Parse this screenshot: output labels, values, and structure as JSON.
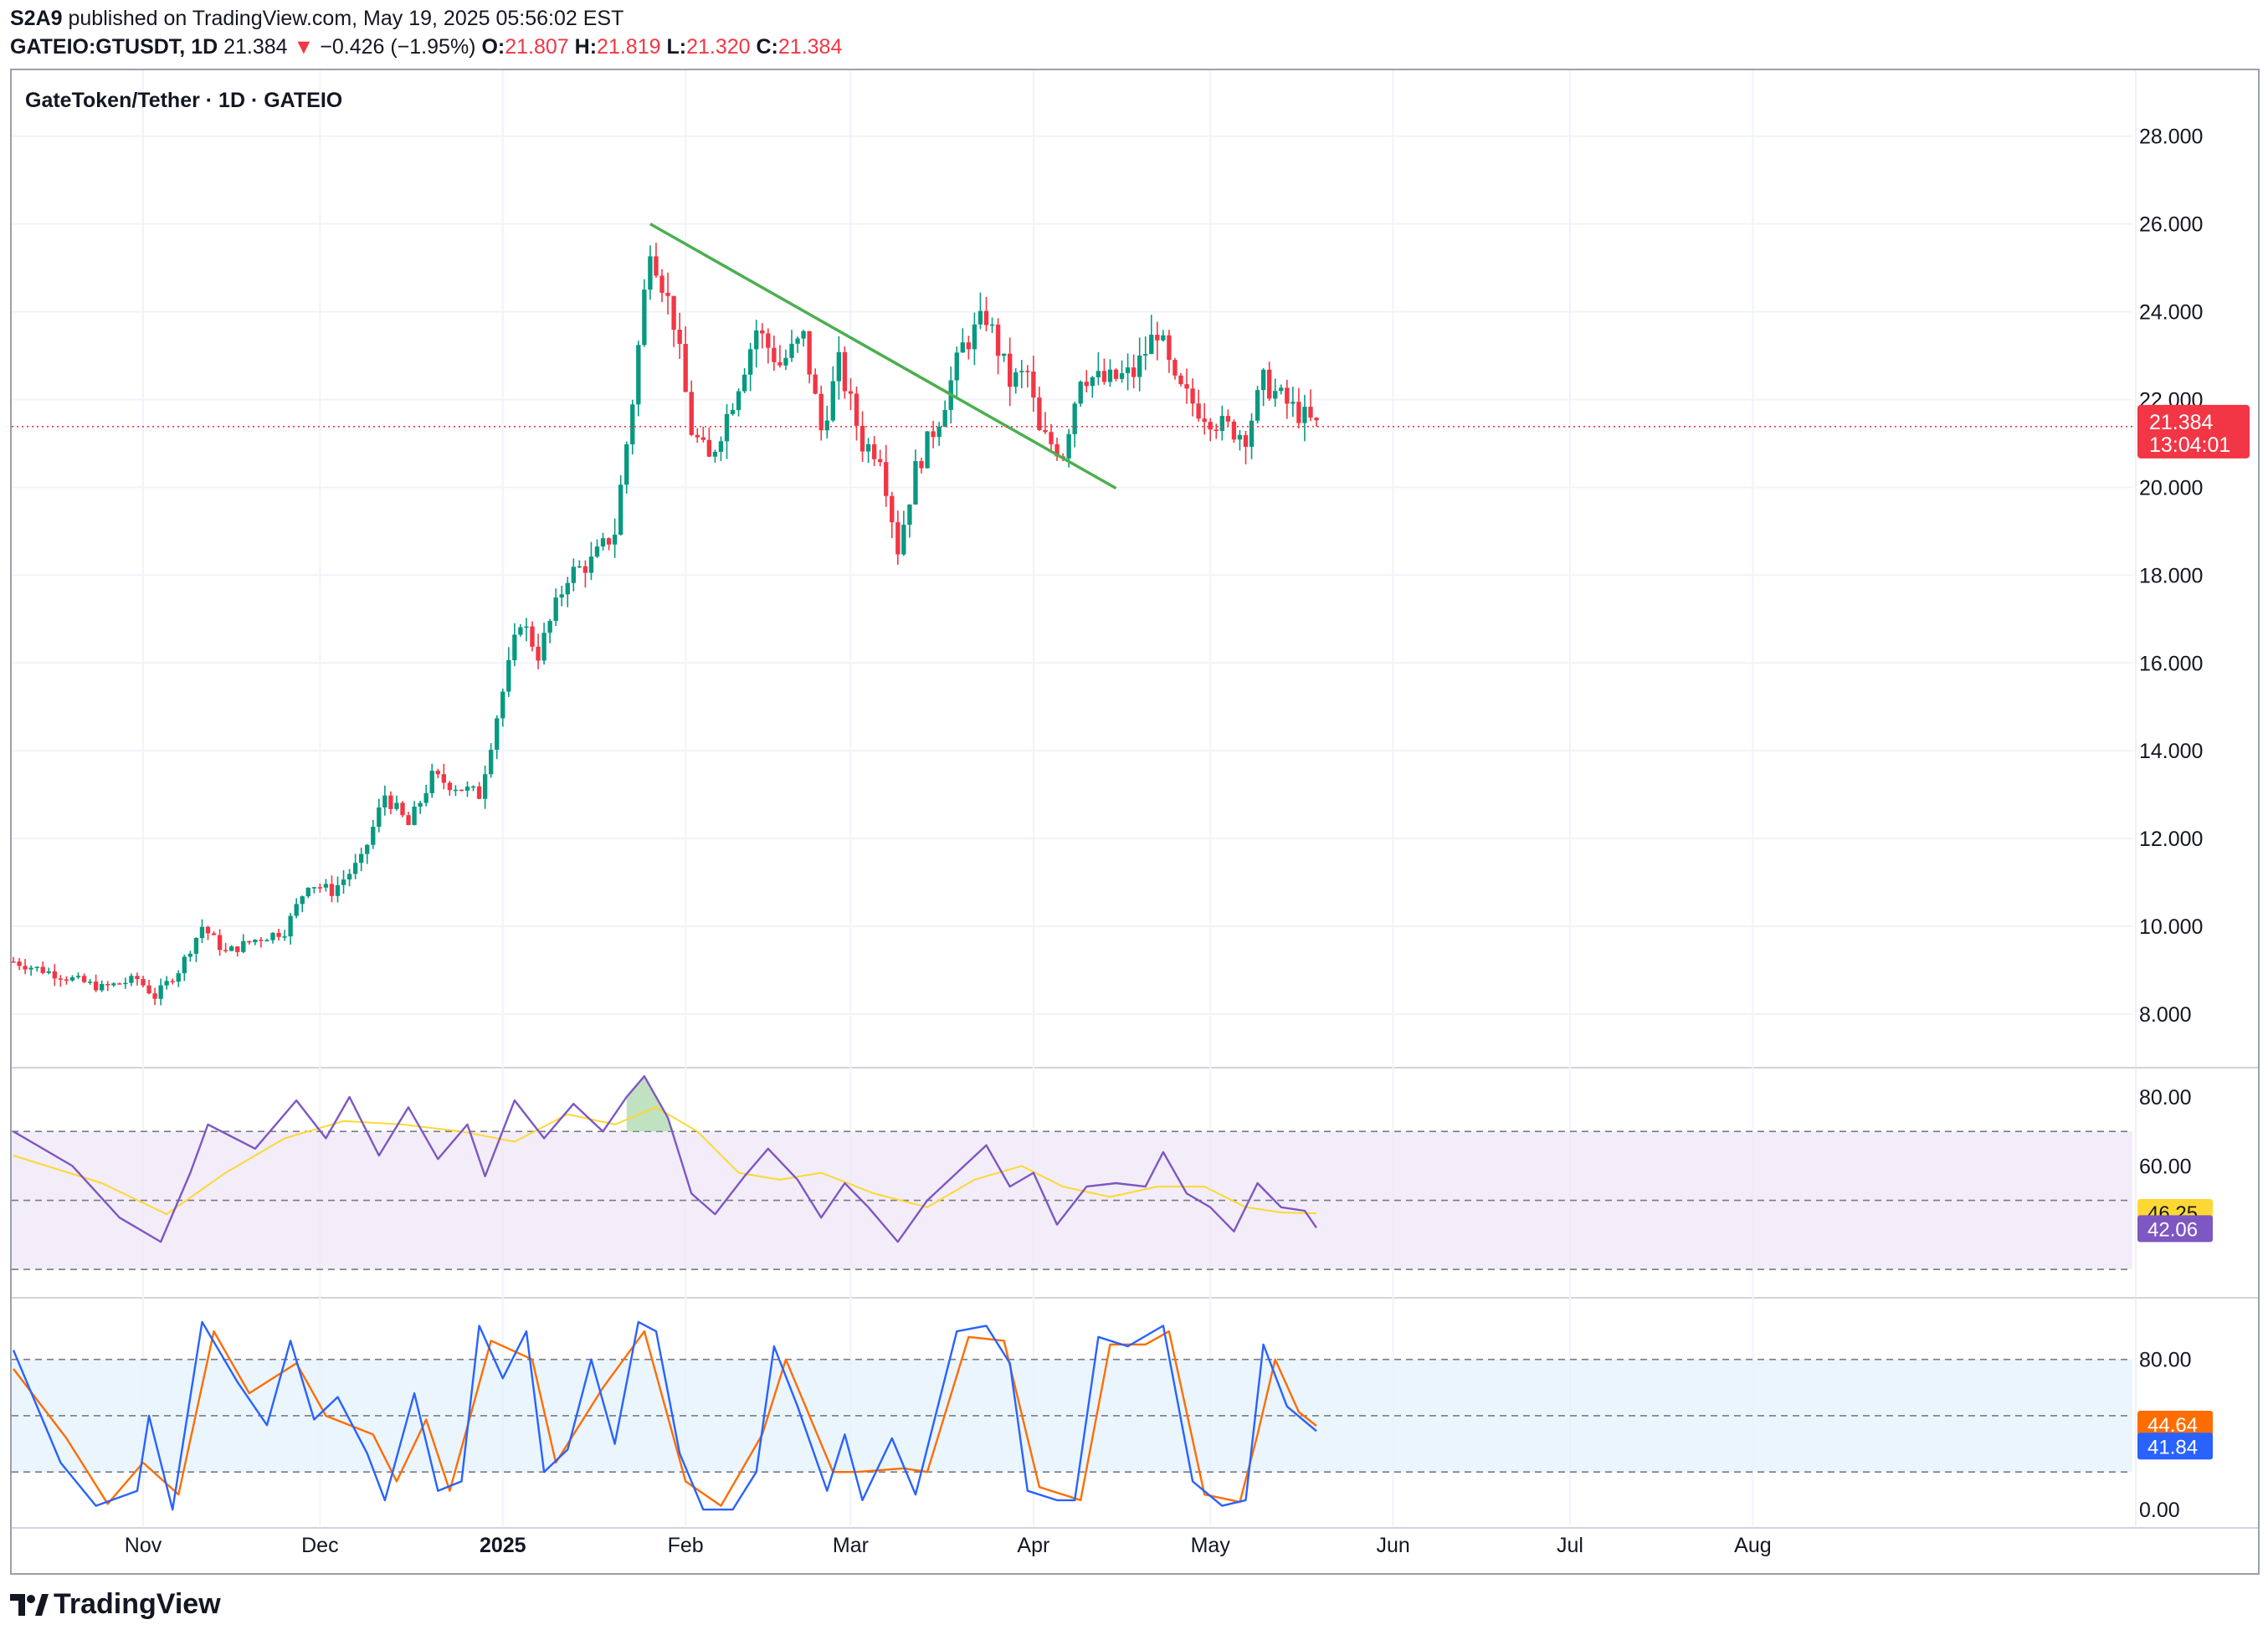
{
  "header": {
    "publisher": "S2A9",
    "published_text": "published on TradingView.com, May 19, 2025 05:56:02 EST",
    "symbol": "GATEIO:GTUSDT, 1D",
    "last": "21.384",
    "change_arrow": "▼",
    "change": "−0.426 (−1.95%)",
    "o_label": "O:",
    "o_value": "21.807",
    "h_label": "H:",
    "h_value": "21.819",
    "l_label": "L:",
    "l_value": "21.320",
    "c_label": "C:",
    "c_value": "21.384"
  },
  "footer": {
    "brand": "TradingView"
  },
  "colors": {
    "up": "#089981",
    "down": "#f23645",
    "trendline": "#4caf50",
    "rsi": "#7e57c2",
    "rsi_ma": "#fdd835",
    "stoch_k": "#2962ff",
    "stoch_d": "#ff6d00",
    "rsi_band": "#ede7f6",
    "stoch_band": "#e3f2fd",
    "grid": "#f0f3fa"
  },
  "chart_data": [
    {
      "type": "candlestick",
      "title": "GateToken/Tether · 1D · GATEIO",
      "price_axis_labels": [
        "28.000",
        "26.000",
        "24.000",
        "22.000",
        "20.000",
        "18.000",
        "16.000",
        "14.000",
        "12.000",
        "10.000",
        "8.000"
      ],
      "ylim": [
        6.8,
        29.5
      ],
      "x_axis_labels": [
        "Nov",
        "Dec",
        "2025",
        "Feb",
        "Mar",
        "Apr",
        "May",
        "Jun",
        "Jul",
        "Aug"
      ],
      "last_price_label": "21.384",
      "countdown_label": "13:04:01",
      "last_price": 21.384,
      "approx_close_path": [
        [
          "2024-10-10",
          9.2
        ],
        [
          "2024-10-20",
          8.8
        ],
        [
          "2024-10-25",
          8.6
        ],
        [
          "2024-10-31",
          8.8
        ],
        [
          "2024-11-03",
          8.4
        ],
        [
          "2024-11-07",
          9.0
        ],
        [
          "2024-11-11",
          10.0
        ],
        [
          "2024-11-15",
          9.4
        ],
        [
          "2024-11-20",
          9.7
        ],
        [
          "2024-11-25",
          9.9
        ],
        [
          "2024-11-29",
          11.0
        ],
        [
          "2024-12-03",
          10.8
        ],
        [
          "2024-12-08",
          11.5
        ],
        [
          "2024-12-12",
          13.0
        ],
        [
          "2024-12-16",
          12.3
        ],
        [
          "2024-12-20",
          13.4
        ],
        [
          "2024-12-24",
          13.2
        ],
        [
          "2024-12-28",
          13.0
        ],
        [
          "2024-12-31",
          14.8
        ],
        [
          "2025-01-04",
          17.0
        ],
        [
          "2025-01-07",
          16.2
        ],
        [
          "2025-01-12",
          18.0
        ],
        [
          "2025-01-16",
          18.3
        ],
        [
          "2025-01-20",
          19.0
        ],
        [
          "2025-01-23",
          22.0
        ],
        [
          "2025-01-26",
          25.6
        ],
        [
          "2025-01-30",
          23.8
        ],
        [
          "2025-02-02",
          21.3
        ],
        [
          "2025-02-05",
          20.6
        ],
        [
          "2025-02-09",
          22.0
        ],
        [
          "2025-02-13",
          23.6
        ],
        [
          "2025-02-17",
          22.8
        ],
        [
          "2025-02-21",
          23.4
        ],
        [
          "2025-02-24",
          21.3
        ],
        [
          "2025-02-27",
          22.8
        ],
        [
          "2025-03-03",
          21.0
        ],
        [
          "2025-03-06",
          20.8
        ],
        [
          "2025-03-09",
          18.6
        ],
        [
          "2025-03-12",
          20.4
        ],
        [
          "2025-03-16",
          21.6
        ],
        [
          "2025-03-20",
          23.2
        ],
        [
          "2025-03-24",
          23.9
        ],
        [
          "2025-03-28",
          22.4
        ],
        [
          "2025-03-31",
          22.6
        ],
        [
          "2025-04-02",
          21.2
        ],
        [
          "2025-04-06",
          20.8
        ],
        [
          "2025-04-09",
          22.6
        ],
        [
          "2025-04-13",
          22.4
        ],
        [
          "2025-04-18",
          22.6
        ],
        [
          "2025-04-22",
          23.6
        ],
        [
          "2025-04-25",
          22.3
        ],
        [
          "2025-04-29",
          21.8
        ],
        [
          "2025-05-03",
          21.4
        ],
        [
          "2025-05-07",
          21.2
        ],
        [
          "2025-05-10",
          22.4
        ],
        [
          "2025-05-14",
          21.9
        ],
        [
          "2025-05-19",
          21.384
        ]
      ],
      "trendline": {
        "from": [
          "2025-01-26",
          26.0
        ],
        "to": [
          "2025-04-15",
          19.98
        ]
      }
    },
    {
      "type": "line",
      "name": "RSI",
      "axis_labels": [
        "80.00",
        "60.00"
      ],
      "ylim": [
        22,
        88
      ],
      "band": [
        30,
        70
      ],
      "midline": 50,
      "value_labels": {
        "rsi_ma": "46.25",
        "rsi": "42.06"
      },
      "rsi_path": [
        [
          "2024-10-10",
          70
        ],
        [
          "2024-10-20",
          60
        ],
        [
          "2024-10-28",
          45
        ],
        [
          "2024-11-04",
          38
        ],
        [
          "2024-11-09",
          58
        ],
        [
          "2024-11-12",
          72
        ],
        [
          "2024-11-20",
          65
        ],
        [
          "2024-11-27",
          79
        ],
        [
          "2024-12-02",
          68
        ],
        [
          "2024-12-06",
          80
        ],
        [
          "2024-12-11",
          63
        ],
        [
          "2024-12-16",
          77
        ],
        [
          "2024-12-21",
          62
        ],
        [
          "2024-12-26",
          72
        ],
        [
          "2024-12-29",
          57
        ],
        [
          "2025-01-03",
          79
        ],
        [
          "2025-01-08",
          68
        ],
        [
          "2025-01-13",
          78
        ],
        [
          "2025-01-18",
          70
        ],
        [
          "2025-01-22",
          80
        ],
        [
          "2025-01-25",
          86
        ],
        [
          "2025-01-29",
          74
        ],
        [
          "2025-02-02",
          52
        ],
        [
          "2025-02-06",
          46
        ],
        [
          "2025-02-11",
          57
        ],
        [
          "2025-02-15",
          65
        ],
        [
          "2025-02-20",
          56
        ],
        [
          "2025-02-24",
          45
        ],
        [
          "2025-02-28",
          55
        ],
        [
          "2025-03-04",
          48
        ],
        [
          "2025-03-09",
          38
        ],
        [
          "2025-03-14",
          50
        ],
        [
          "2025-03-19",
          58
        ],
        [
          "2025-03-24",
          66
        ],
        [
          "2025-03-28",
          54
        ],
        [
          "2025-04-01",
          58
        ],
        [
          "2025-04-05",
          43
        ],
        [
          "2025-04-10",
          54
        ],
        [
          "2025-04-15",
          55
        ],
        [
          "2025-04-20",
          54
        ],
        [
          "2025-04-23",
          64
        ],
        [
          "2025-04-27",
          52
        ],
        [
          "2025-05-01",
          48
        ],
        [
          "2025-05-05",
          41
        ],
        [
          "2025-05-09",
          55
        ],
        [
          "2025-05-13",
          48
        ],
        [
          "2025-05-17",
          47
        ],
        [
          "2025-05-19",
          42.06
        ]
      ],
      "rsi_ma_path": [
        [
          "2024-10-10",
          63
        ],
        [
          "2024-10-25",
          55
        ],
        [
          "2024-11-05",
          46
        ],
        [
          "2024-11-15",
          58
        ],
        [
          "2024-11-25",
          68
        ],
        [
          "2024-12-05",
          73
        ],
        [
          "2024-12-15",
          72
        ],
        [
          "2024-12-25",
          70
        ],
        [
          "2025-01-03",
          67
        ],
        [
          "2025-01-12",
          75
        ],
        [
          "2025-01-20",
          72
        ],
        [
          "2025-01-27",
          77
        ],
        [
          "2025-02-03",
          70
        ],
        [
          "2025-02-10",
          58
        ],
        [
          "2025-02-17",
          56
        ],
        [
          "2025-02-24",
          58
        ],
        [
          "2025-03-05",
          52
        ],
        [
          "2025-03-14",
          48
        ],
        [
          "2025-03-22",
          56
        ],
        [
          "2025-03-30",
          60
        ],
        [
          "2025-04-06",
          54
        ],
        [
          "2025-04-14",
          51
        ],
        [
          "2025-04-22",
          54
        ],
        [
          "2025-04-30",
          54
        ],
        [
          "2025-05-07",
          48
        ],
        [
          "2025-05-13",
          46.5
        ],
        [
          "2025-05-19",
          46.25
        ]
      ]
    },
    {
      "type": "line",
      "name": "Stochastic RSI",
      "axis_labels": [
        "80.00",
        "0.00"
      ],
      "ylim": [
        -8,
        112
      ],
      "band": [
        20,
        80
      ],
      "midline": 50,
      "value_labels": {
        "d": "44.64",
        "k": "41.84"
      },
      "k_path": [
        [
          "2024-10-10",
          85
        ],
        [
          "2024-10-18",
          25
        ],
        [
          "2024-10-24",
          2
        ],
        [
          "2024-10-31",
          10
        ],
        [
          "2024-11-02",
          50
        ],
        [
          "2024-11-06",
          0
        ],
        [
          "2024-11-11",
          100
        ],
        [
          "2024-11-17",
          68
        ],
        [
          "2024-11-22",
          45
        ],
        [
          "2024-11-26",
          90
        ],
        [
          "2024-11-30",
          48
        ],
        [
          "2024-12-04",
          60
        ],
        [
          "2024-12-09",
          30
        ],
        [
          "2024-12-12",
          5
        ],
        [
          "2024-12-17",
          62
        ],
        [
          "2024-12-21",
          10
        ],
        [
          "2024-12-25",
          15
        ],
        [
          "2024-12-28",
          98
        ],
        [
          "2025-01-01",
          70
        ],
        [
          "2025-01-05",
          95
        ],
        [
          "2025-01-08",
          20
        ],
        [
          "2025-01-12",
          32
        ],
        [
          "2025-01-16",
          80
        ],
        [
          "2025-01-20",
          35
        ],
        [
          "2025-01-24",
          100
        ],
        [
          "2025-01-27",
          95
        ],
        [
          "2025-01-31",
          30
        ],
        [
          "2025-02-04",
          0
        ],
        [
          "2025-02-09",
          0
        ],
        [
          "2025-02-13",
          20
        ],
        [
          "2025-02-16",
          87
        ],
        [
          "2025-02-20",
          55
        ],
        [
          "2025-02-25",
          10
        ],
        [
          "2025-02-28",
          40
        ],
        [
          "2025-03-03",
          5
        ],
        [
          "2025-03-08",
          38
        ],
        [
          "2025-03-12",
          8
        ],
        [
          "2025-03-19",
          95
        ],
        [
          "2025-03-24",
          98
        ],
        [
          "2025-03-28",
          78
        ],
        [
          "2025-03-31",
          10
        ],
        [
          "2025-04-05",
          5
        ],
        [
          "2025-04-08",
          5
        ],
        [
          "2025-04-12",
          92
        ],
        [
          "2025-04-17",
          87
        ],
        [
          "2025-04-23",
          98
        ],
        [
          "2025-04-28",
          15
        ],
        [
          "2025-05-03",
          2
        ],
        [
          "2025-05-07",
          5
        ],
        [
          "2025-05-10",
          88
        ],
        [
          "2025-05-14",
          55
        ],
        [
          "2025-05-19",
          41.84
        ]
      ],
      "d_path": [
        [
          "2024-10-10",
          75
        ],
        [
          "2024-10-19",
          38
        ],
        [
          "2024-10-26",
          3
        ],
        [
          "2024-11-01",
          25
        ],
        [
          "2024-11-07",
          8
        ],
        [
          "2024-11-13",
          95
        ],
        [
          "2024-11-19",
          62
        ],
        [
          "2024-11-27",
          78
        ],
        [
          "2024-12-02",
          50
        ],
        [
          "2024-12-10",
          40
        ],
        [
          "2024-12-14",
          15
        ],
        [
          "2024-12-19",
          48
        ],
        [
          "2024-12-23",
          10
        ],
        [
          "2024-12-30",
          90
        ],
        [
          "2025-01-06",
          80
        ],
        [
          "2025-01-10",
          25
        ],
        [
          "2025-01-18",
          65
        ],
        [
          "2025-01-25",
          95
        ],
        [
          "2025-02-01",
          15
        ],
        [
          "2025-02-07",
          2
        ],
        [
          "2025-02-14",
          40
        ],
        [
          "2025-02-18",
          80
        ],
        [
          "2025-02-26",
          20
        ],
        [
          "2025-03-02",
          20
        ],
        [
          "2025-03-10",
          22
        ],
        [
          "2025-03-14",
          20
        ],
        [
          "2025-03-21",
          92
        ],
        [
          "2025-03-27",
          90
        ],
        [
          "2025-04-02",
          12
        ],
        [
          "2025-04-09",
          5
        ],
        [
          "2025-04-14",
          88
        ],
        [
          "2025-04-20",
          88
        ],
        [
          "2025-04-24",
          95
        ],
        [
          "2025-04-30",
          8
        ],
        [
          "2025-05-06",
          4
        ],
        [
          "2025-05-09",
          40
        ],
        [
          "2025-05-12",
          80
        ],
        [
          "2025-05-16",
          52
        ],
        [
          "2025-05-19",
          44.64
        ]
      ]
    }
  ]
}
